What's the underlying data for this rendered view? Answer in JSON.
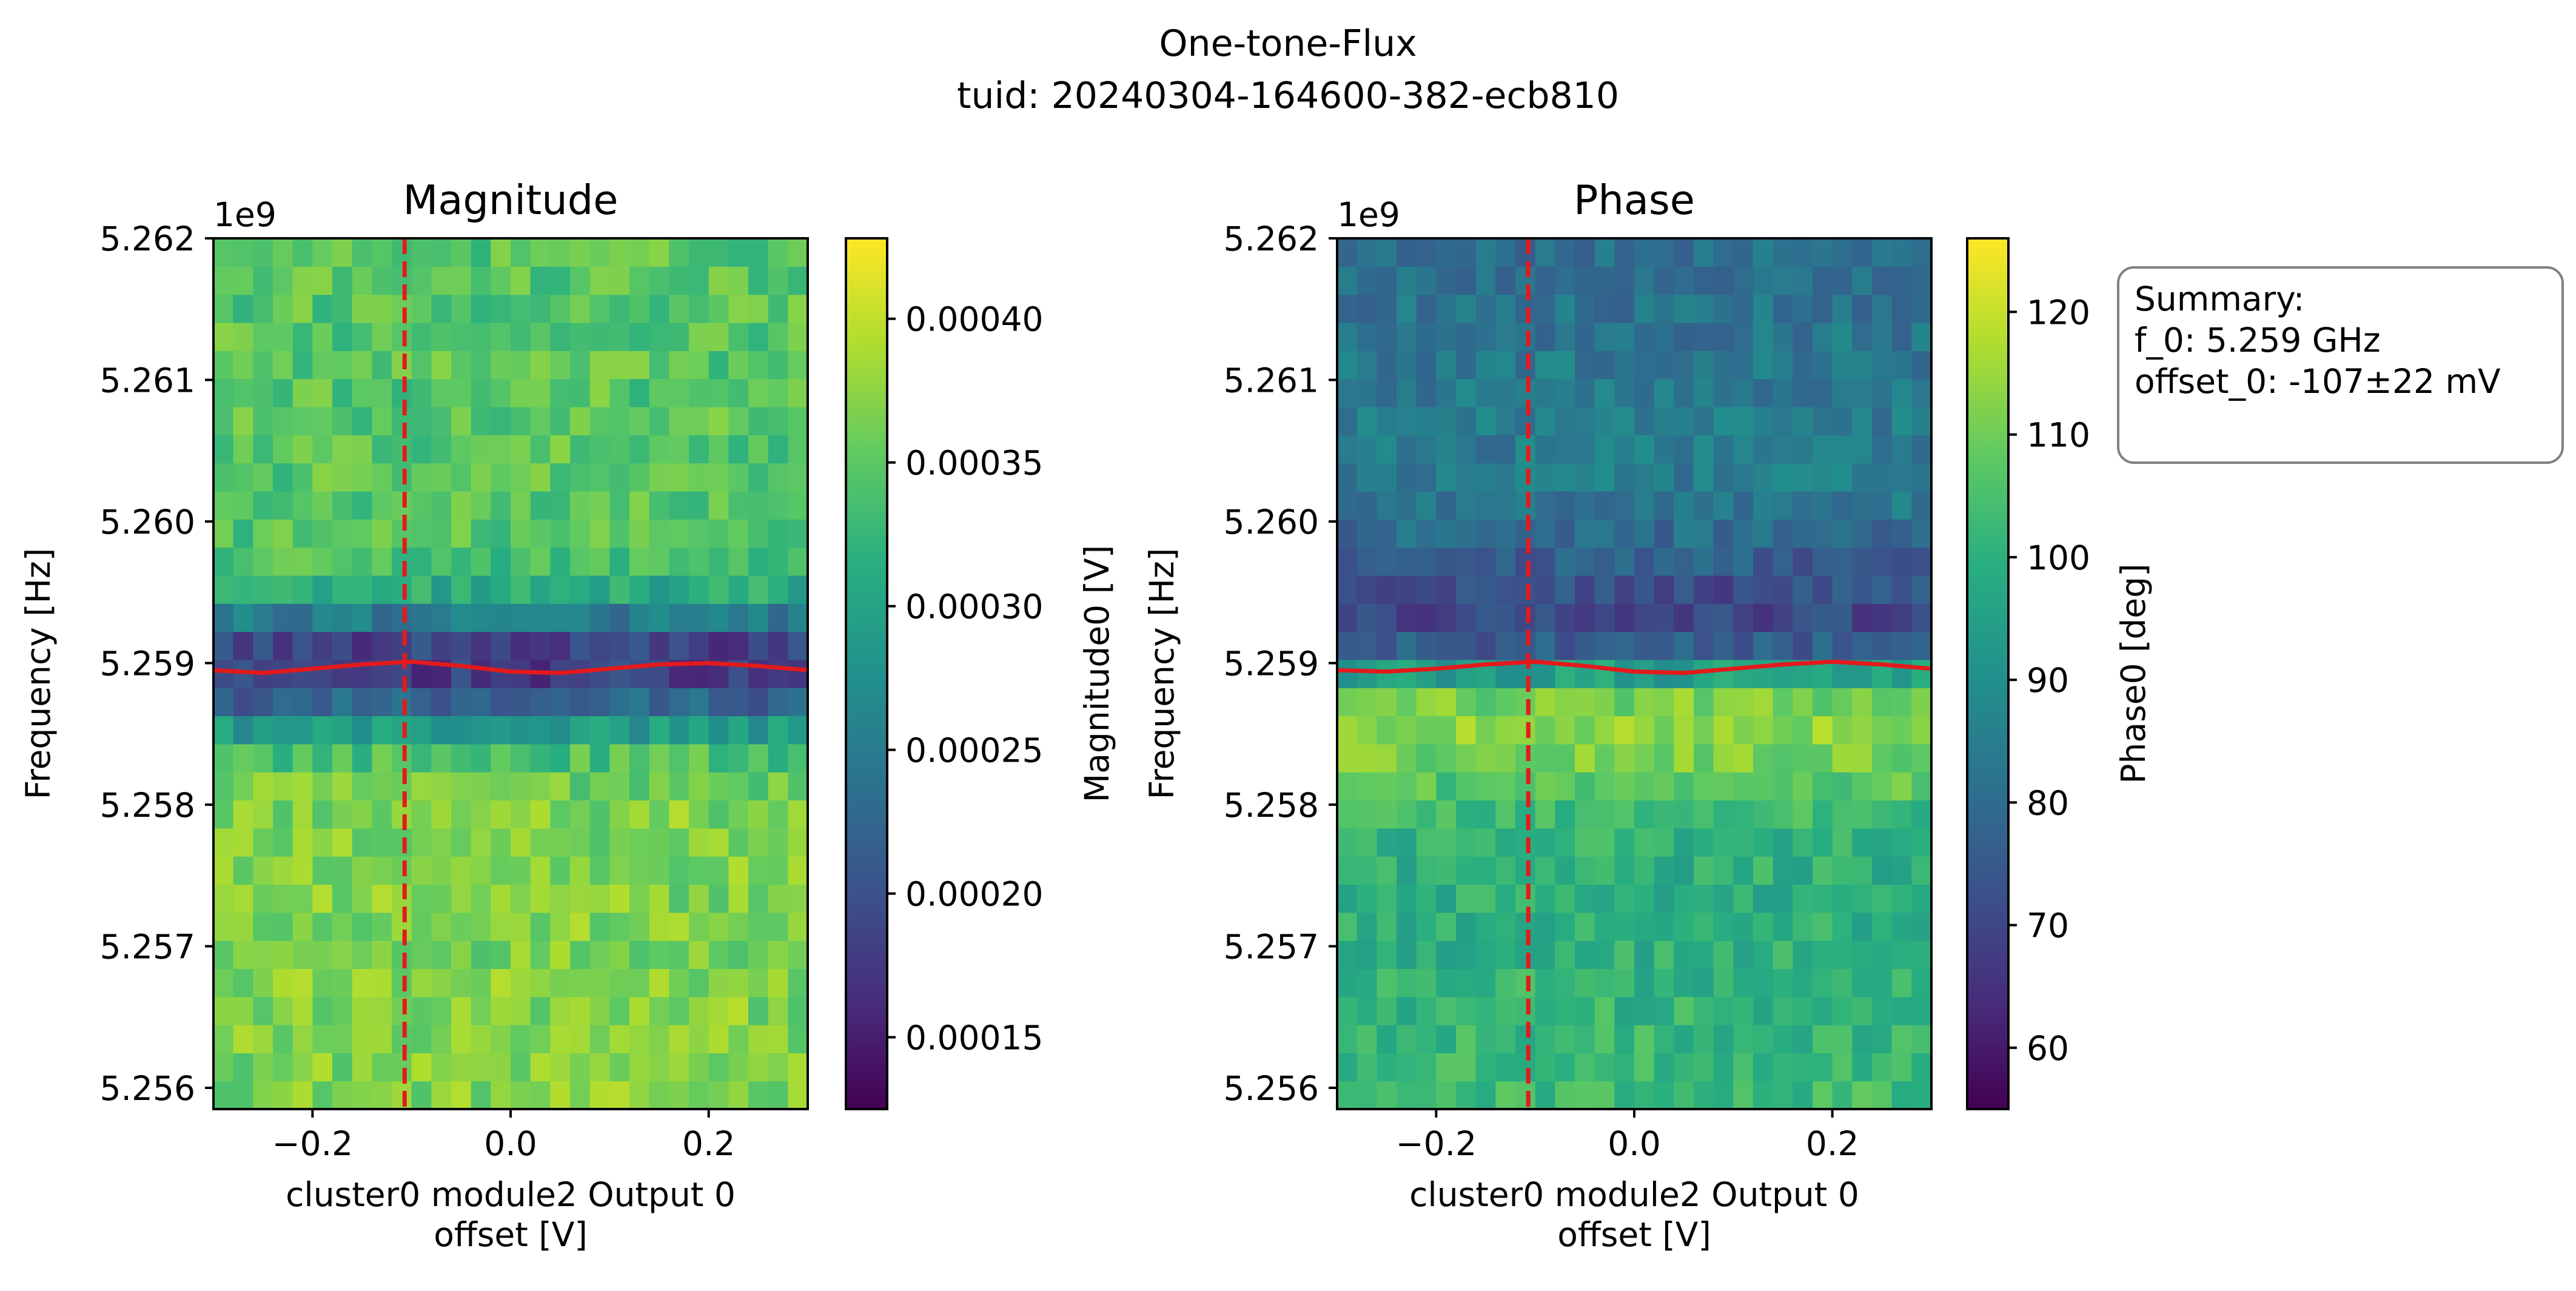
{
  "figure": {
    "title_line1": "One-tone-Flux",
    "title_line2": "tuid: 20240304-164600-382-ecb810"
  },
  "summary_box": {
    "line1": "Summary:",
    "line2": "f_0: 5.259 GHz",
    "line3": "offset_0: -107±22 mV"
  },
  "chart_data": [
    {
      "type": "heatmap",
      "title": "Magnitude",
      "xlabel_line1": "cluster0 module2 Output 0",
      "xlabel_line2": "offset [V]",
      "ylabel": "Frequency [Hz]",
      "y_offset_label": "1e9",
      "x_range": [
        -0.3,
        0.3
      ],
      "y_range": [
        5.25585,
        5.262
      ],
      "x_ticks": [
        -0.2,
        0.0,
        0.2
      ],
      "x_tick_labels": [
        "−0.2",
        "0.0",
        "0.2"
      ],
      "y_ticks": [
        5.256,
        5.257,
        5.258,
        5.259,
        5.26,
        5.261,
        5.262
      ],
      "y_tick_labels": [
        "5.256",
        "5.257",
        "5.258",
        "5.259",
        "5.260",
        "5.261",
        "5.262"
      ],
      "grid": {
        "nx": 30,
        "ny": 31
      },
      "colormap": "viridis",
      "colorbar": {
        "label": "Magnitude0 [V]",
        "range": [
          0.000125,
          0.000428
        ],
        "ticks": [
          0.00015,
          0.0002,
          0.00025,
          0.0003,
          0.00035,
          0.0004
        ],
        "tick_labels": [
          "0.00015",
          "0.00020",
          "0.00025",
          "0.00030",
          "0.00035",
          "0.00040"
        ]
      },
      "resonance_fit": {
        "color": "#e31a1c",
        "x": [
          -0.3,
          -0.25,
          -0.2,
          -0.15,
          -0.1,
          -0.05,
          0.0,
          0.05,
          0.1,
          0.15,
          0.2,
          0.25,
          0.3
        ],
        "y": [
          5.25895,
          5.25893,
          5.25896,
          5.25899,
          5.25901,
          5.25898,
          5.25894,
          5.25893,
          5.25896,
          5.25899,
          5.259,
          5.25898,
          5.25895
        ]
      },
      "offset_marker": {
        "x": -0.107,
        "color": "#e31a1c",
        "style": "dashed"
      }
    },
    {
      "type": "heatmap",
      "title": "Phase",
      "xlabel_line1": "cluster0 module2 Output 0",
      "xlabel_line2": "offset [V]",
      "ylabel": "Frequency [Hz]",
      "y_offset_label": "1e9",
      "x_range": [
        -0.3,
        0.3
      ],
      "y_range": [
        5.25585,
        5.262
      ],
      "x_ticks": [
        -0.2,
        0.0,
        0.2
      ],
      "x_tick_labels": [
        "−0.2",
        "0.0",
        "0.2"
      ],
      "y_ticks": [
        5.256,
        5.257,
        5.258,
        5.259,
        5.26,
        5.261,
        5.262
      ],
      "y_tick_labels": [
        "5.256",
        "5.257",
        "5.258",
        "5.259",
        "5.260",
        "5.261",
        "5.262"
      ],
      "grid": {
        "nx": 30,
        "ny": 31
      },
      "colormap": "viridis",
      "colorbar": {
        "label": "Phase0 [deg]",
        "range": [
          55,
          126
        ],
        "ticks": [
          60,
          70,
          80,
          90,
          100,
          110,
          120
        ],
        "tick_labels": [
          "60",
          "70",
          "80",
          "90",
          "100",
          "110",
          "120"
        ]
      },
      "resonance_fit": {
        "color": "#e31a1c",
        "x": [
          -0.3,
          -0.25,
          -0.2,
          -0.15,
          -0.1,
          -0.05,
          0.0,
          0.05,
          0.1,
          0.15,
          0.2,
          0.25,
          0.3
        ],
        "y": [
          5.25895,
          5.25894,
          5.25896,
          5.25899,
          5.25901,
          5.25898,
          5.25894,
          5.25893,
          5.25896,
          5.25899,
          5.25901,
          5.25899,
          5.25896
        ]
      },
      "offset_marker": {
        "x": -0.107,
        "color": "#e31a1c",
        "style": "dashed"
      }
    }
  ]
}
